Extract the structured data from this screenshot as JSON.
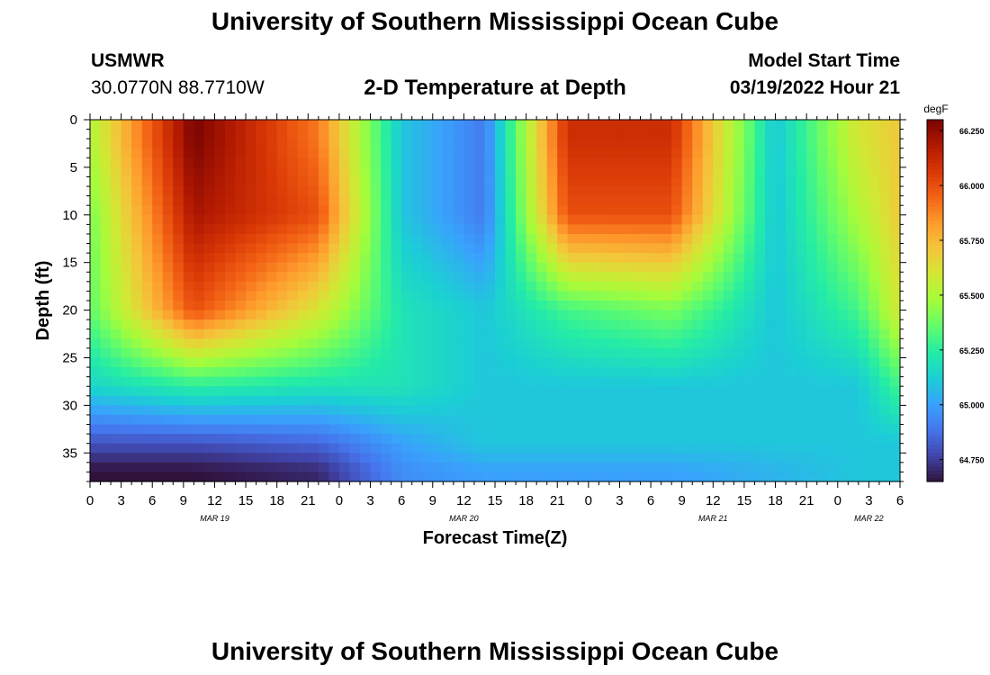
{
  "page": {
    "title": "University of Southern Mississippi Ocean Cube",
    "title_repeat": "University of Southern Mississippi Ocean Cube",
    "station_id": "USMWR",
    "station_coords": "30.0770N  88.7710W",
    "model_start_label": "Model Start Time",
    "model_start_value": "03/19/2022 Hour 21"
  },
  "chart_data": {
    "type": "heatmap",
    "title": "2-D Temperature at Depth",
    "xlabel": "Forecast Time(Z)",
    "ylabel": "Depth (ft)",
    "x_range_hours": [
      0,
      78
    ],
    "xlim": [
      "03/19/2022 00Z",
      "03/22/2022 06Z"
    ],
    "ylim": [
      0,
      38
    ],
    "y_inverted": true,
    "x_tick_labels": [
      "0",
      "3",
      "6",
      "9",
      "12",
      "15",
      "18",
      "21",
      "0",
      "3",
      "6",
      "9",
      "12",
      "15",
      "18",
      "21",
      "0",
      "3",
      "6",
      "9",
      "12",
      "15",
      "18",
      "21",
      "0",
      "3",
      "6"
    ],
    "day_labels": [
      {
        "label": "MAR 19",
        "hour": 12
      },
      {
        "label": "MAR 20",
        "hour": 36
      },
      {
        "label": "MAR 21",
        "hour": 60
      },
      {
        "label": "MAR 22",
        "hour": 75
      }
    ],
    "y_tick_labels": [
      "0",
      "5",
      "10",
      "15",
      "20",
      "25",
      "30",
      "35"
    ],
    "y_tick_values": [
      0,
      5,
      10,
      15,
      20,
      25,
      30,
      35
    ],
    "colorbar": {
      "label": "degF",
      "min": 64.65,
      "max": 66.3,
      "tick_values": [
        66.25,
        66.0,
        65.75,
        65.5,
        65.25,
        65.0,
        64.75
      ],
      "tick_labels": [
        "66.250",
        "66.000",
        "65.750",
        "65.500",
        "65.250",
        "65.000",
        "64.750"
      ],
      "colors": [
        "#30123b",
        "#4145ab",
        "#4675ed",
        "#39a2fc",
        "#1bcfd4",
        "#24eca6",
        "#61fc6c",
        "#a4fc3b",
        "#d1e834",
        "#f3c63a",
        "#fe9b2d",
        "#f36315",
        "#d93806",
        "#b11901",
        "#7a0402"
      ]
    },
    "field_description": "Temperature (degF) over forecast hour (x) and depth in ft (y)",
    "sample_grid": {
      "hours": [
        0,
        10,
        22,
        30,
        38,
        46,
        56,
        66,
        74,
        78
      ],
      "depths_ft": [
        2,
        10,
        20,
        28,
        34,
        37
      ],
      "values": [
        [
          65.5,
          66.3,
          65.9,
          65.1,
          64.9,
          66.1,
          66.1,
          65.1,
          65.6,
          65.7
        ],
        [
          65.4,
          66.2,
          66.0,
          65.1,
          64.9,
          66.0,
          66.0,
          65.1,
          65.5,
          65.7
        ],
        [
          65.35,
          66.0,
          65.6,
          65.2,
          65.1,
          65.3,
          65.4,
          65.1,
          65.3,
          65.6
        ],
        [
          65.15,
          65.25,
          65.2,
          65.2,
          65.1,
          65.1,
          65.1,
          65.1,
          65.1,
          65.3
        ],
        [
          64.8,
          64.8,
          64.85,
          65.0,
          65.1,
          65.1,
          65.1,
          65.1,
          65.1,
          65.1
        ],
        [
          64.65,
          64.65,
          64.7,
          64.95,
          65.0,
          65.0,
          65.0,
          65.05,
          65.1,
          65.1
        ]
      ]
    }
  }
}
